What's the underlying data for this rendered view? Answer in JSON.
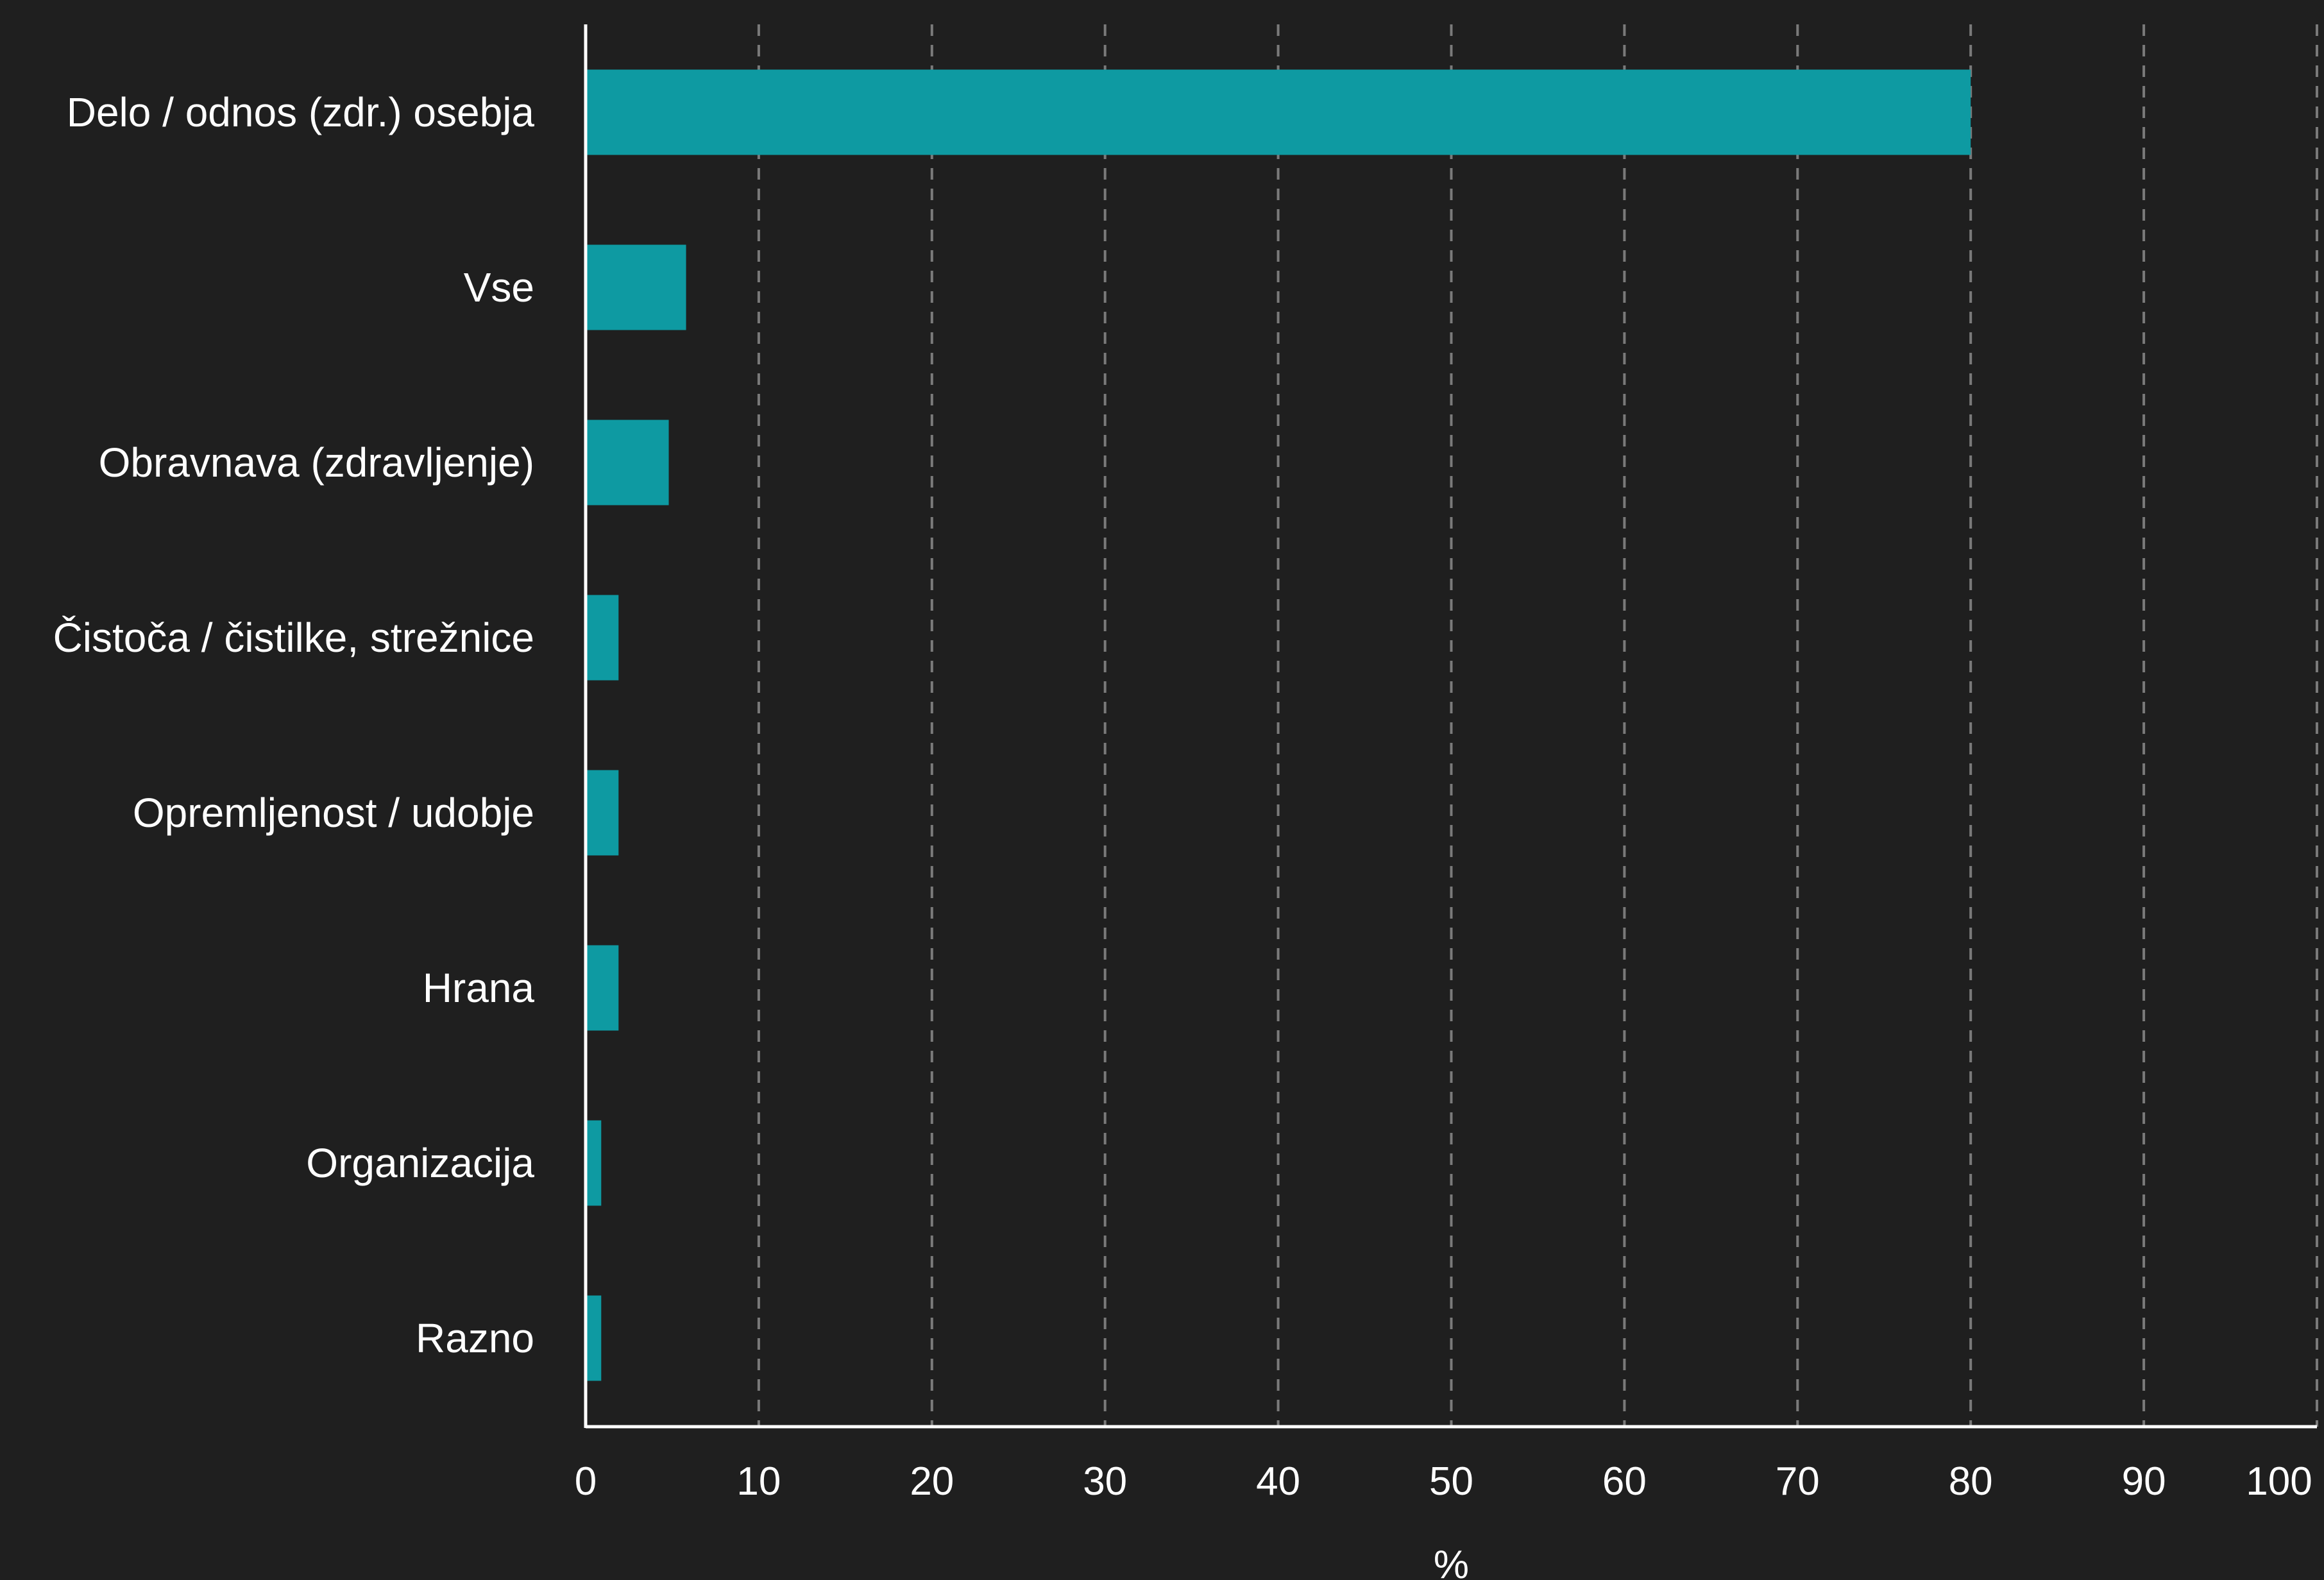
{
  "chart_data": {
    "type": "bar",
    "orientation": "horizontal",
    "categories": [
      "Delo / odnos (zdr.) osebja",
      "Vse",
      "Obravnava (zdravljenje)",
      "Čistoča / čistilke, strežnice",
      "Opremljenost / udobje",
      "Hrana",
      "Organizacija",
      "Razno"
    ],
    "values": [
      80,
      5.8,
      4.8,
      1.9,
      1.9,
      1.9,
      0.9,
      0.9
    ],
    "title": "",
    "xlabel": "%",
    "ylabel": "",
    "xlim": [
      0,
      100
    ],
    "x_ticks": [
      "0",
      "10",
      "20",
      "30",
      "40",
      "50",
      "60",
      "70",
      "80",
      "90",
      "100"
    ],
    "grid": "vertical dashed",
    "legend": "none"
  },
  "colors": {
    "background": "#1f1f1f",
    "bar": "#0e9aa2",
    "grid": "#7a7a7a",
    "axis": "#ffffff",
    "text": "#ffffff"
  }
}
